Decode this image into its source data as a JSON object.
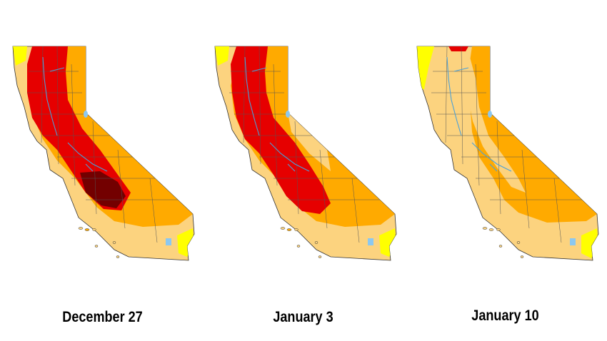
{
  "panels": [
    {
      "label": "December 27",
      "severe_extent": "large",
      "exceptional": true
    },
    {
      "label": "January 3",
      "severe_extent": "large",
      "exceptional": false
    },
    {
      "label": "January 10",
      "severe_extent": "minimal",
      "exceptional": false
    }
  ],
  "colors": {
    "abnormally_dry": "#ffff00",
    "moderate": "#fcd37f",
    "severe": "#ffaa00",
    "extreme": "#e60000",
    "exceptional": "#730000",
    "water": "#8cc8f0",
    "borders": "#333333"
  }
}
